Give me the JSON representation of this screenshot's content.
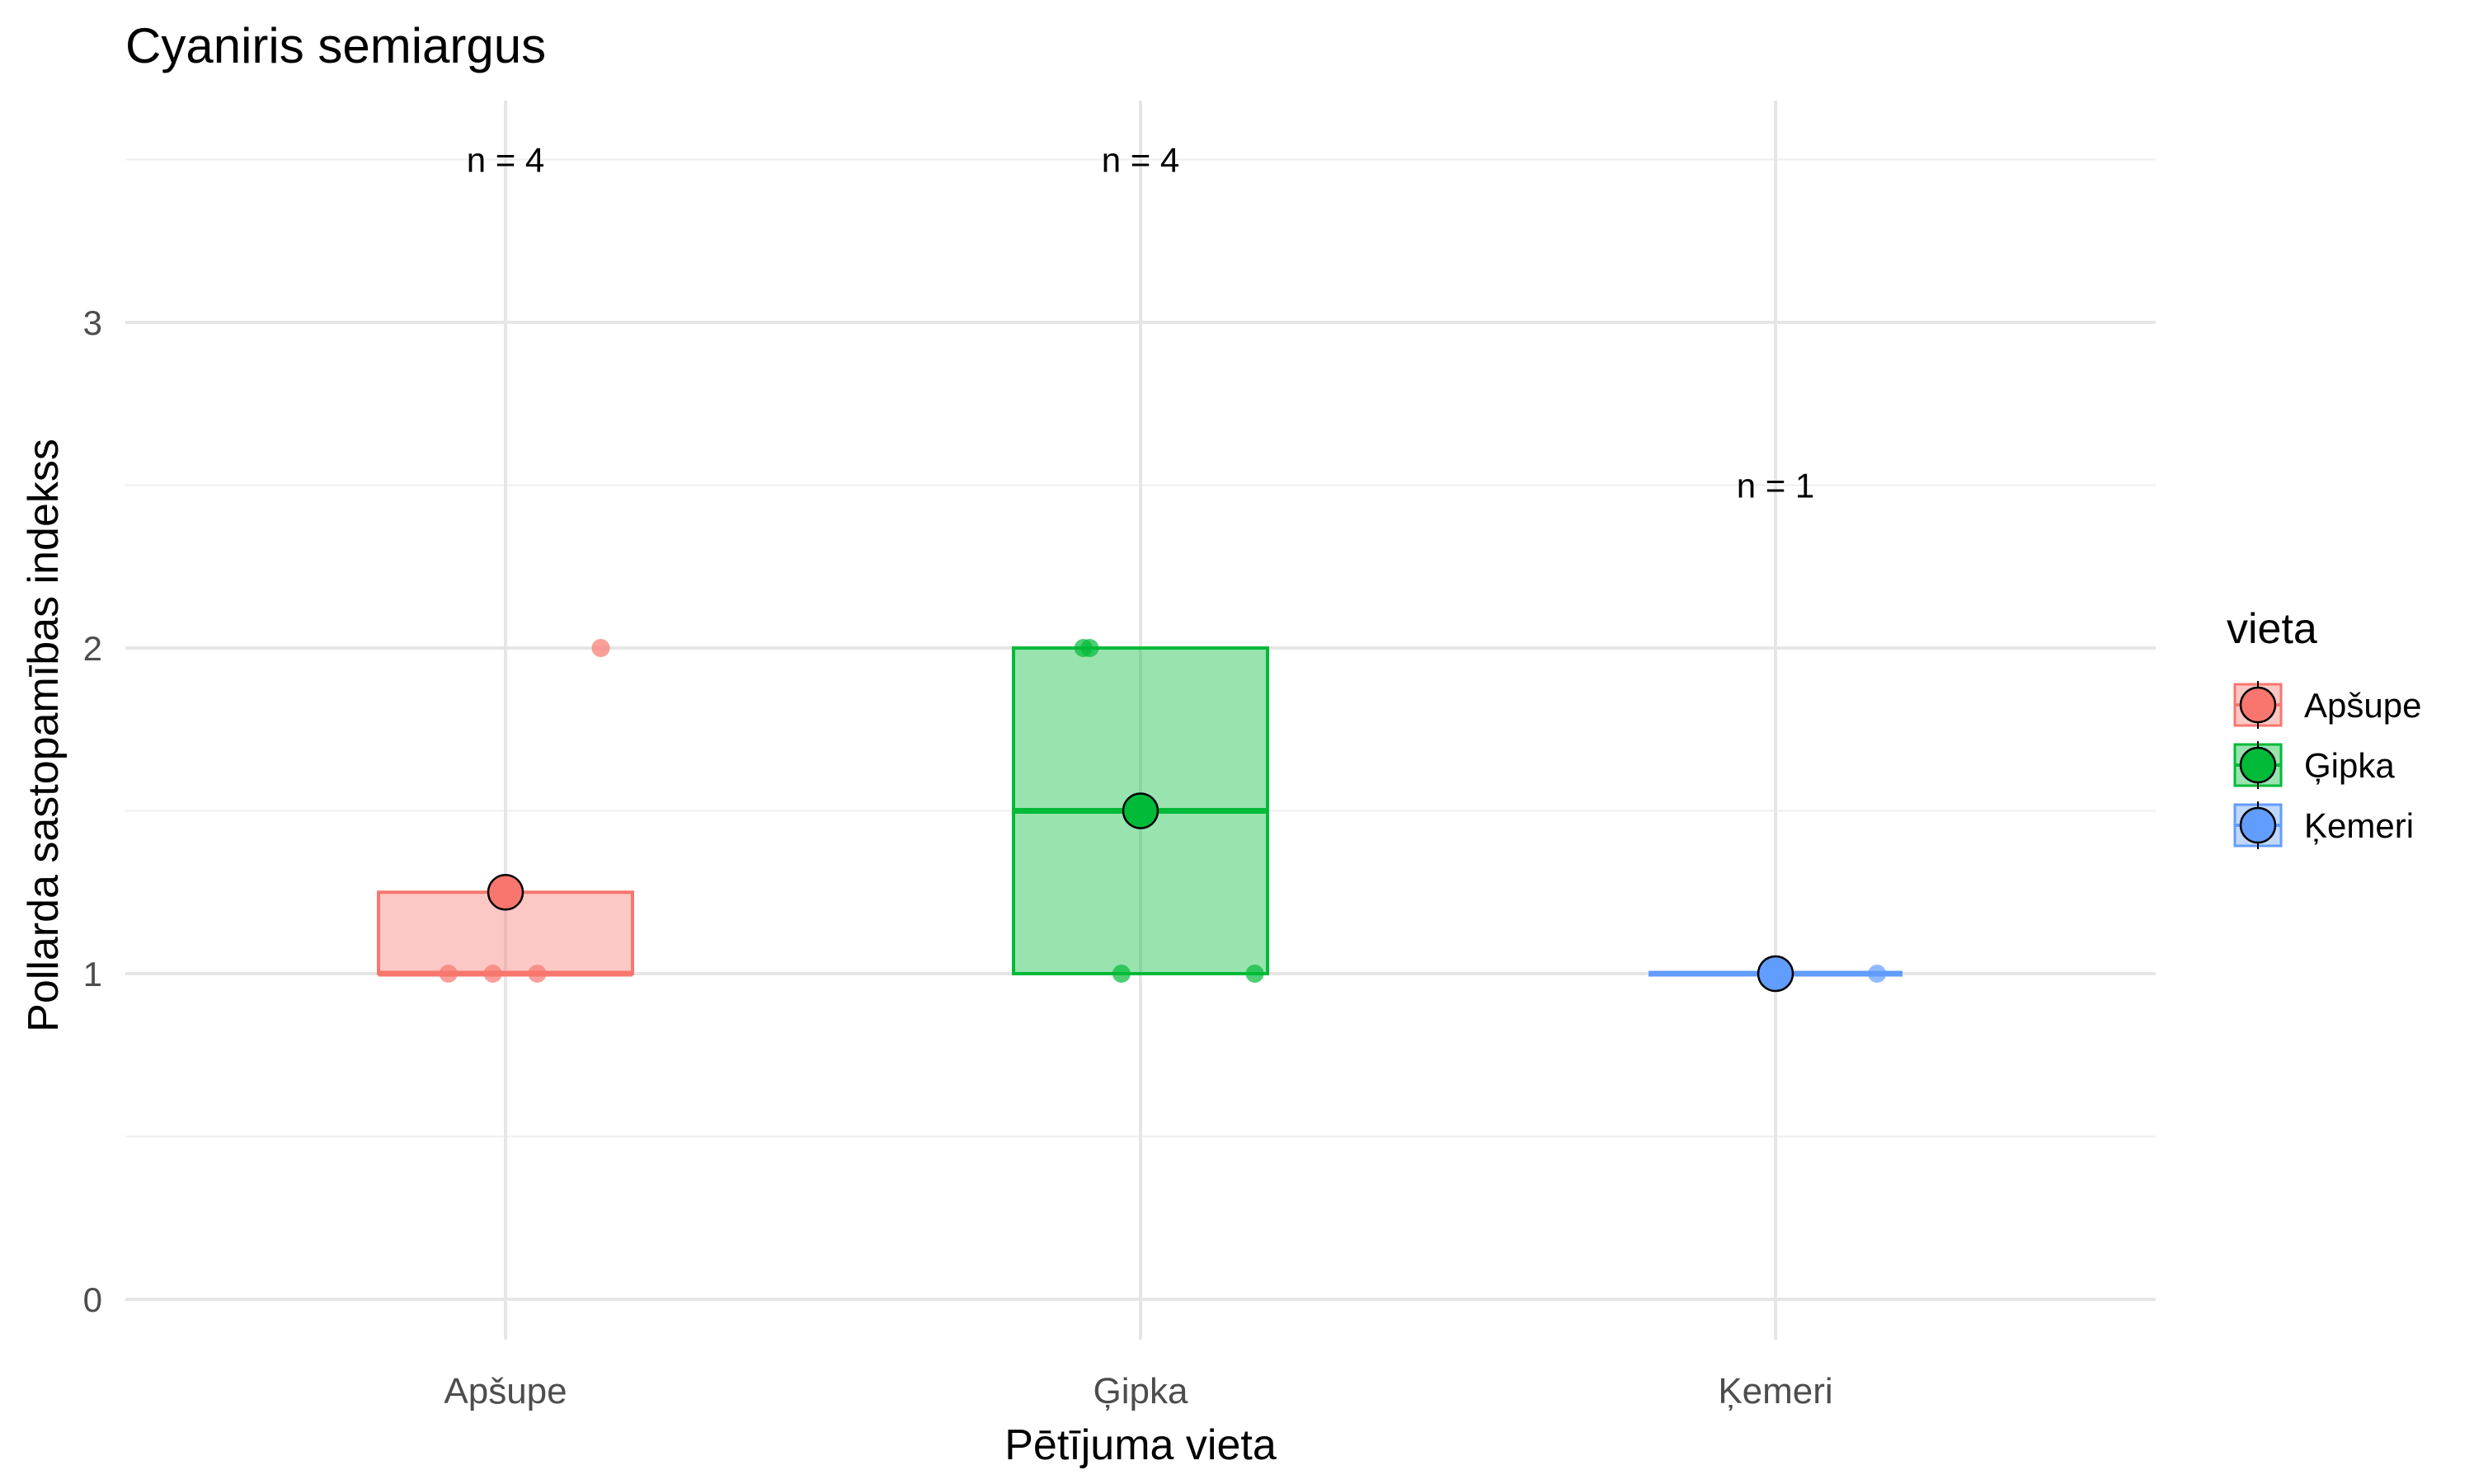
{
  "chart_data": {
    "type": "box",
    "title": "Cyaniris semiargus",
    "xlabel": "Pētījuma vieta",
    "ylabel": "Pollarda sastopamības indekss",
    "ylim": [
      -0.15,
      3.5
    ],
    "yticks": [
      0,
      1,
      2,
      3
    ],
    "ytick_labels": [
      "0",
      "1",
      "2",
      "3"
    ],
    "grid": true,
    "categories": [
      "Apšupe",
      "Ģipka",
      "Ķemeri"
    ],
    "colors": [
      "#F8766D",
      "#00BA38",
      "#619CFF"
    ],
    "legend": {
      "title": "vieta",
      "position": "right",
      "items": [
        "Apšupe",
        "Ģipka",
        "Ķemeri"
      ]
    },
    "boxes": [
      {
        "name": "Apšupe",
        "q1": 1,
        "median": 1,
        "q3": 1.25,
        "mean": 1.25,
        "count_label": "n = 4",
        "count_y": 3.5,
        "points": [
          {
            "dx": -0.09,
            "y": 1
          },
          {
            "dx": -0.02,
            "y": 1
          },
          {
            "dx": 0.05,
            "y": 1
          },
          {
            "dx": 0.15,
            "y": 2
          }
        ]
      },
      {
        "name": "Ģipka",
        "q1": 1,
        "median": 1.5,
        "q3": 2,
        "mean": 1.5,
        "count_label": "n = 4",
        "count_y": 3.5,
        "points": [
          {
            "dx": -0.08,
            "y": 2
          },
          {
            "dx": -0.09,
            "y": 2
          },
          {
            "dx": -0.03,
            "y": 1
          },
          {
            "dx": 0.18,
            "y": 1
          }
        ]
      },
      {
        "name": "Ķemeri",
        "q1": 1,
        "median": 1,
        "q3": 1,
        "mean": 1,
        "count_label": "n = 1",
        "count_y": 2.5,
        "points": [
          {
            "dx": 0.16,
            "y": 1
          }
        ]
      }
    ]
  }
}
